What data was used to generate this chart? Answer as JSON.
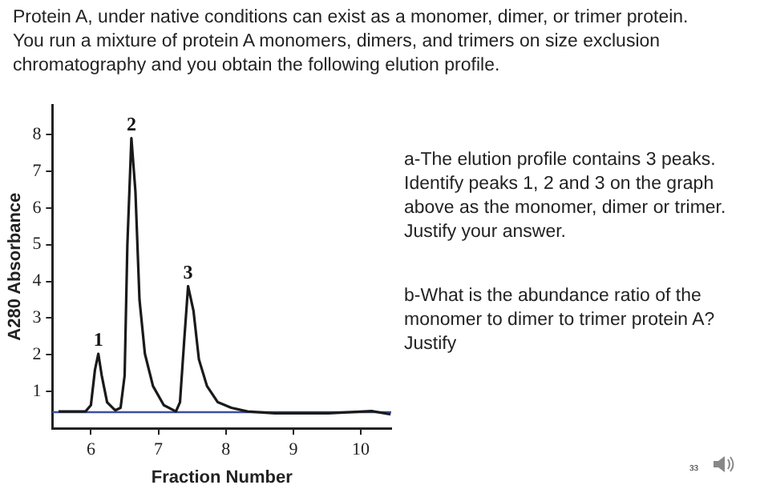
{
  "chart_data": {
    "type": "line",
    "title": "Protein A, under native conditions can exist as a monomer, dimer, or trimer protein. You run a mixture of protein A monomers, dimers, and trimers on size exclusion chromatography and you obtain the following elution profile.",
    "xlabel": "Fraction Number",
    "ylabel": "A280 Absorbance",
    "series": [
      {
        "color": "#1a1a1a",
        "x": [
          5.52,
          5.92,
          6.0,
          6.06,
          6.11,
          6.16,
          6.24,
          6.36,
          6.44,
          6.5,
          6.54,
          6.6,
          6.66,
          6.72,
          6.8,
          6.92,
          7.08,
          7.26,
          7.32,
          7.38,
          7.44,
          7.52,
          7.6,
          7.72,
          7.88,
          8.08,
          8.32,
          8.72,
          9.12,
          9.52,
          10.16,
          10.44
        ],
        "values": [
          0.46,
          0.46,
          0.63,
          1.59,
          2.03,
          1.44,
          0.71,
          0.49,
          0.56,
          1.44,
          4.97,
          7.9,
          6.44,
          3.5,
          2.03,
          1.15,
          0.63,
          0.46,
          0.71,
          2.32,
          3.87,
          3.2,
          1.88,
          1.15,
          0.71,
          0.56,
          0.46,
          0.41,
          0.41,
          0.41,
          0.47,
          0.38
        ]
      }
    ],
    "xlim": [
      5.43,
      10.45
    ],
    "xticks": [
      6,
      7,
      8,
      9,
      10
    ],
    "ylim": [
      0,
      8.8
    ],
    "yticks": [
      1,
      2,
      3,
      4,
      5,
      6,
      7,
      8
    ],
    "ref_lines": [
      {
        "axis": "y",
        "value": 0.44,
        "color": "#3b4fa0"
      }
    ],
    "annotations": [
      {
        "text": "1",
        "x": 6.11,
        "y": 2.03
      },
      {
        "text": "2",
        "x": 6.6,
        "y": 7.9
      },
      {
        "text": "3",
        "x": 7.44,
        "y": 3.87
      },
      "a-The elution profile contains 3 peaks. Identify peaks 1, 2 and 3 on the graph above as the monomer, dimer or trimer. Justify your answer.",
      "b-What is the abundance ratio of the monomer to dimer to trimer protein A? Justify",
      "33"
    ],
    "grid": false,
    "legend": false,
    "marker": "none",
    "line_style": "solid"
  }
}
